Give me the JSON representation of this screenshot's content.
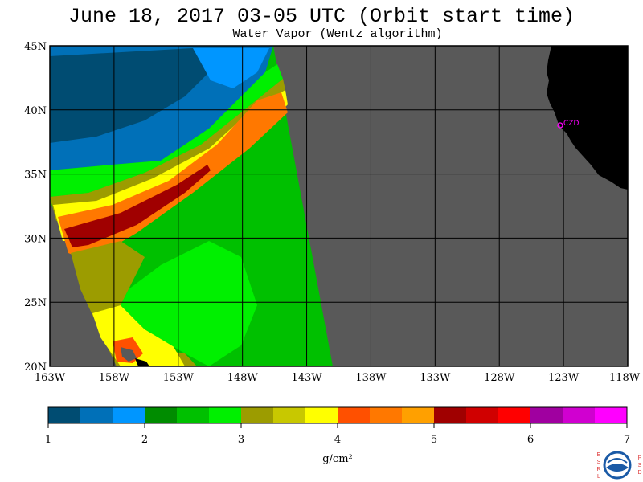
{
  "title": "June 18, 2017  03-05 UTC  (Orbit start time)",
  "subtitle": "Water Vapor (Wentz algorithm)",
  "map": {
    "lat_labels": [
      "45N",
      "40N",
      "35N",
      "30N",
      "25N",
      "20N"
    ],
    "lon_labels": [
      "163W",
      "158W",
      "153W",
      "148W",
      "143W",
      "138W",
      "133W",
      "128W",
      "123W",
      "118W"
    ],
    "lat_range": [
      20,
      45
    ],
    "lon_range": [
      -163,
      -118
    ],
    "station_label": "CZD",
    "colors": {
      "nodata": "#595959",
      "land": "#000000",
      "station": "#ff00ff"
    }
  },
  "colorbar": {
    "ticks": [
      "1",
      "2",
      "3",
      "4",
      "5",
      "6",
      "7"
    ],
    "unit": "g/cm²",
    "colors": [
      "#004c72",
      "#0070b8",
      "#0096ff",
      "#008c00",
      "#00c000",
      "#00f000",
      "#9c9c00",
      "#c8c800",
      "#ffff00",
      "#ff5000",
      "#ff7800",
      "#ffa000",
      "#a00000",
      "#d00000",
      "#ff0000",
      "#a000a0",
      "#d000d0",
      "#ff00ff"
    ]
  },
  "logo": {
    "name": "NOAA",
    "left_letters": "ESRL",
    "right_letters": "PSD"
  }
}
